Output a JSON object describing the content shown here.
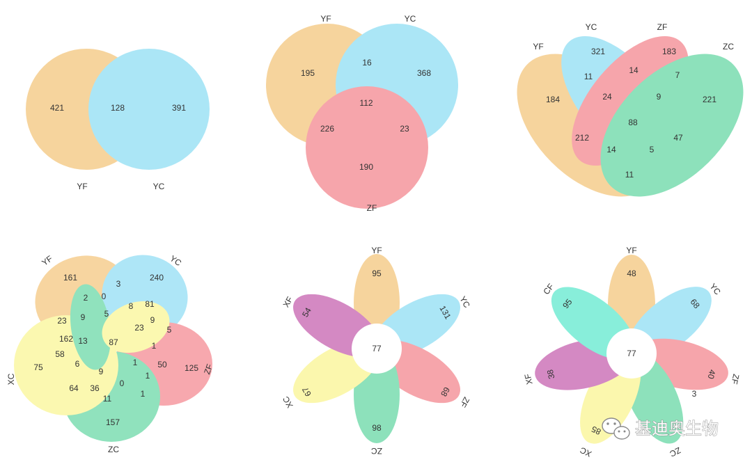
{
  "colors": {
    "YF": "#F1B961",
    "YC": "#77D6F1",
    "ZF": "#F16D77",
    "ZC": "#46CE91",
    "XC": "#F8F37B",
    "XF": "#B9409E",
    "CF": "#3FE4C4"
  },
  "watermark": {
    "text": "基迪奥生物",
    "icon": "wechat-icon"
  },
  "diagrams": [
    {
      "id": "venn2",
      "sets": [
        "YF",
        "YC"
      ],
      "counts": {
        "YF_only": "421",
        "YF_YC": "128",
        "YC_only": "391"
      }
    },
    {
      "id": "venn3",
      "sets": [
        "YF",
        "YC",
        "ZF"
      ],
      "counts": {
        "YF_only": "195",
        "YF_YC": "16",
        "YC_only": "368",
        "YF_YC_ZF": "112",
        "YF_ZF": "226",
        "YC_ZF": "23",
        "ZF_only": "190"
      }
    },
    {
      "id": "venn4",
      "sets": [
        "YF",
        "YC",
        "ZF",
        "ZC"
      ],
      "counts": {
        "c321": "321",
        "c183": "183",
        "c184": "184",
        "c11a": "11",
        "c14a": "14",
        "c7": "7",
        "c221": "221",
        "c24": "24",
        "c9": "9",
        "c88": "88",
        "c212": "212",
        "c47": "47",
        "c14b": "14",
        "c5": "5",
        "c11b": "11"
      }
    },
    {
      "id": "venn5",
      "sets": [
        "YF",
        "YC",
        "ZF",
        "ZC",
        "XC"
      ],
      "counts": [
        "161",
        "3",
        "240",
        "2",
        "0",
        "8",
        "81",
        "23",
        "9",
        "5",
        "9",
        "23",
        "5",
        "162",
        "13",
        "87",
        "1",
        "58",
        "75",
        "6",
        "9",
        "1",
        "50",
        "125",
        "1",
        "64",
        "36",
        "0",
        "1",
        "11",
        "157"
      ]
    },
    {
      "id": "flower6",
      "sets": [
        "YF",
        "YC",
        "ZF",
        "ZC",
        "XC",
        "XF"
      ],
      "core": "77",
      "petals": [
        "95",
        "131",
        "68",
        "98",
        "67",
        "54"
      ]
    },
    {
      "id": "flower7",
      "sets": [
        "YF",
        "YC",
        "ZF",
        "ZC",
        "XC",
        "XF",
        "CF"
      ],
      "core": "77",
      "petals": [
        "48",
        "68",
        "40",
        "3",
        "85",
        "38",
        "95"
      ]
    }
  ]
}
